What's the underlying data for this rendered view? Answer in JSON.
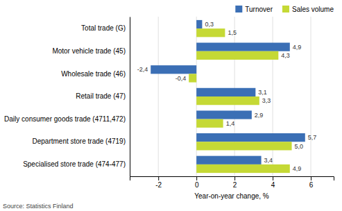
{
  "chart_data": {
    "type": "bar",
    "orientation": "horizontal",
    "categories": [
      "Total trade (G)",
      "Motor vehicle trade (45)",
      "Wholesale trade (46)",
      "Retail trade (47)",
      "Daily consumer goods trade (4711,472)",
      "Department store trade (4719)",
      "Specialised store trade (474-477)"
    ],
    "series": [
      {
        "name": "Turnover",
        "color": "#3B6FB5",
        "values": [
          0.3,
          4.9,
          -2.4,
          3.1,
          2.9,
          5.7,
          3.4
        ],
        "value_labels": [
          "0,3",
          "4,9",
          "-2,4",
          "3,1",
          "2,9",
          "5,7",
          "3,4"
        ]
      },
      {
        "name": "Sales volume",
        "color": "#C5D935",
        "values": [
          1.5,
          4.3,
          -0.4,
          3.3,
          1.4,
          5.0,
          4.9
        ],
        "value_labels": [
          "1,5",
          "4,3",
          "-0,4",
          "3,3",
          "1,4",
          "5,0",
          "4,9"
        ]
      }
    ],
    "xlabel": "Year-on-year change, %",
    "xlim": [
      -3.5,
      7.2
    ],
    "xticks": [
      -2,
      0,
      2,
      4,
      6
    ],
    "grid": true,
    "legend": "upper right",
    "data_labels": true,
    "annotations": [
      "Source: Statistics Finland"
    ]
  }
}
